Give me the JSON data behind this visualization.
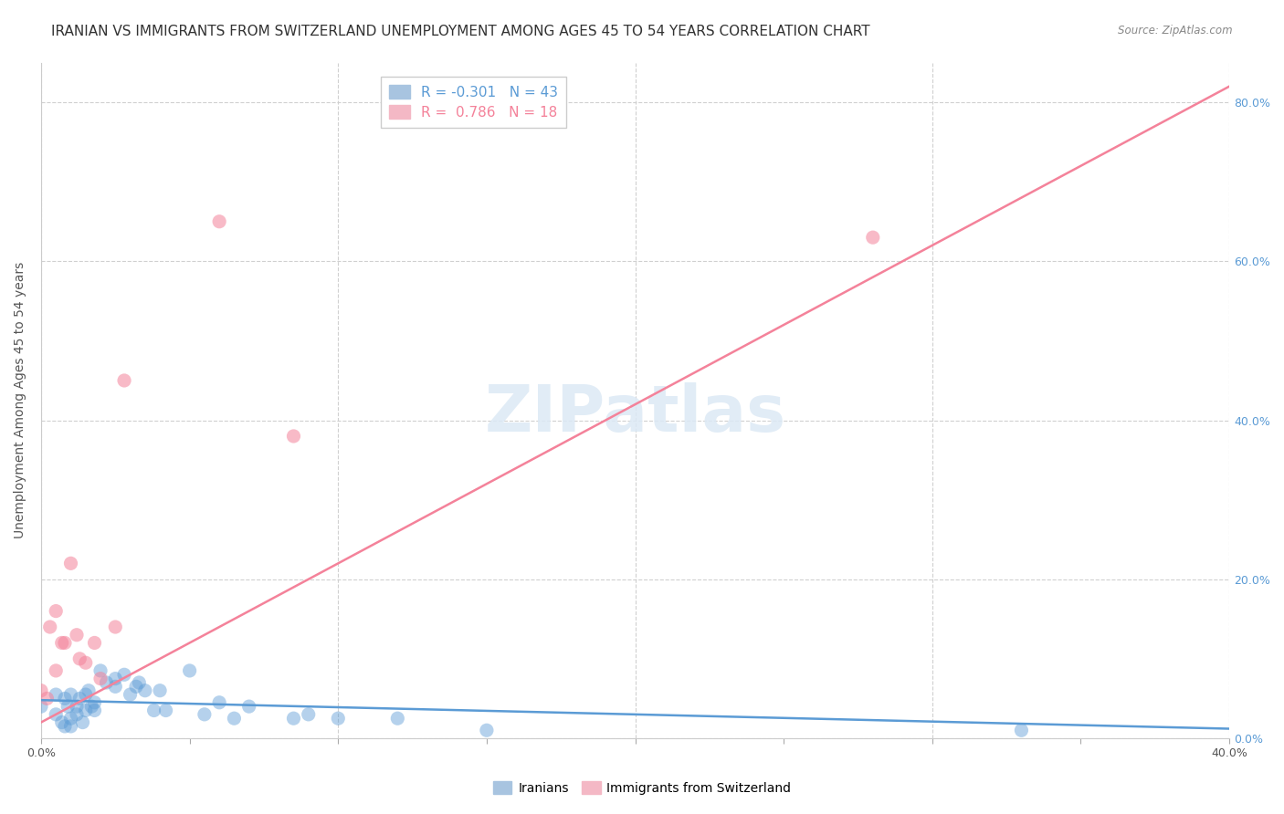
{
  "title": "IRANIAN VS IMMIGRANTS FROM SWITZERLAND UNEMPLOYMENT AMONG AGES 45 TO 54 YEARS CORRELATION CHART",
  "source": "Source: ZipAtlas.com",
  "ylabel": "Unemployment Among Ages 45 to 54 years",
  "xlim": [
    0.0,
    0.4
  ],
  "ylim": [
    0.0,
    0.85
  ],
  "xticks": [
    0.0,
    0.05,
    0.1,
    0.15,
    0.2,
    0.25,
    0.3,
    0.35,
    0.4
  ],
  "yticks_left": [
    0.0,
    0.2,
    0.4,
    0.6,
    0.8
  ],
  "blue_color": "#5b9bd5",
  "pink_color": "#f4829a",
  "blue_patch_color": "#a8c4e0",
  "pink_patch_color": "#f4b8c5",
  "watermark": "ZIPatlas",
  "iranians_x": [
    0.0,
    0.005,
    0.005,
    0.007,
    0.008,
    0.008,
    0.009,
    0.01,
    0.01,
    0.01,
    0.012,
    0.012,
    0.013,
    0.014,
    0.015,
    0.015,
    0.016,
    0.017,
    0.018,
    0.018,
    0.02,
    0.022,
    0.025,
    0.025,
    0.028,
    0.03,
    0.032,
    0.033,
    0.035,
    0.038,
    0.04,
    0.042,
    0.05,
    0.055,
    0.06,
    0.065,
    0.07,
    0.085,
    0.09,
    0.1,
    0.12,
    0.15,
    0.33
  ],
  "iranians_y": [
    0.04,
    0.03,
    0.055,
    0.02,
    0.015,
    0.05,
    0.04,
    0.055,
    0.025,
    0.015,
    0.03,
    0.04,
    0.05,
    0.02,
    0.055,
    0.035,
    0.06,
    0.04,
    0.045,
    0.035,
    0.085,
    0.07,
    0.065,
    0.075,
    0.08,
    0.055,
    0.065,
    0.07,
    0.06,
    0.035,
    0.06,
    0.035,
    0.085,
    0.03,
    0.045,
    0.025,
    0.04,
    0.025,
    0.03,
    0.025,
    0.025,
    0.01,
    0.01
  ],
  "swiss_x": [
    0.0,
    0.002,
    0.003,
    0.005,
    0.005,
    0.007,
    0.008,
    0.01,
    0.012,
    0.013,
    0.015,
    0.018,
    0.02,
    0.025,
    0.028,
    0.06,
    0.085,
    0.28
  ],
  "swiss_y": [
    0.06,
    0.05,
    0.14,
    0.16,
    0.085,
    0.12,
    0.12,
    0.22,
    0.13,
    0.1,
    0.095,
    0.12,
    0.075,
    0.14,
    0.45,
    0.65,
    0.38,
    0.63
  ],
  "blue_line_x": [
    0.0,
    0.4
  ],
  "blue_line_y": [
    0.048,
    0.012
  ],
  "pink_line_x": [
    0.0,
    0.4
  ],
  "pink_line_y": [
    0.02,
    0.82
  ],
  "background_color": "#ffffff",
  "grid_color": "#d0d0d0",
  "title_fontsize": 11,
  "axis_label_fontsize": 10,
  "tick_fontsize": 9,
  "legend1_label1": "R = -0.301   N = 43",
  "legend1_label2": "R =  0.786   N = 18",
  "legend2_label1": "Iranians",
  "legend2_label2": "Immigrants from Switzerland"
}
